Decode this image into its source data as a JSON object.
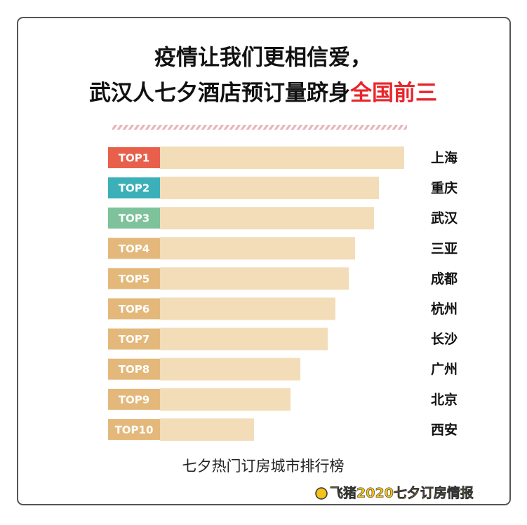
{
  "chart_data": {
    "type": "bar",
    "orientation": "horizontal",
    "title": [
      "疫情让我们更相信爱，",
      "武汉人七夕酒店预订量跻身"
    ],
    "title_highlight": "全国前三",
    "highlight_color": "#e8252b",
    "categories": [
      "TOP1",
      "TOP2",
      "TOP3",
      "TOP4",
      "TOP5",
      "TOP6",
      "TOP7",
      "TOP8",
      "TOP9",
      "TOP10"
    ],
    "category_colors": [
      "#e8604c",
      "#3bb0b8",
      "#7dc29a",
      "#e3b87a",
      "#e3b87a",
      "#e3b87a",
      "#e3b87a",
      "#e3b87a",
      "#e3b87a",
      "#e3b87a"
    ],
    "cities": [
      "上海",
      "重庆",
      "武汉",
      "三亚",
      "成都",
      "杭州",
      "长沙",
      "广州",
      "北京",
      "西安"
    ],
    "values": [
      348,
      312,
      305,
      278,
      269,
      250,
      239,
      200,
      186,
      134
    ],
    "color": "#f2ddb8",
    "xlim": [
      0,
      348
    ],
    "caption": "七夕热门订房城市排行榜",
    "brand": "飞猪2020七夕订房情报"
  }
}
